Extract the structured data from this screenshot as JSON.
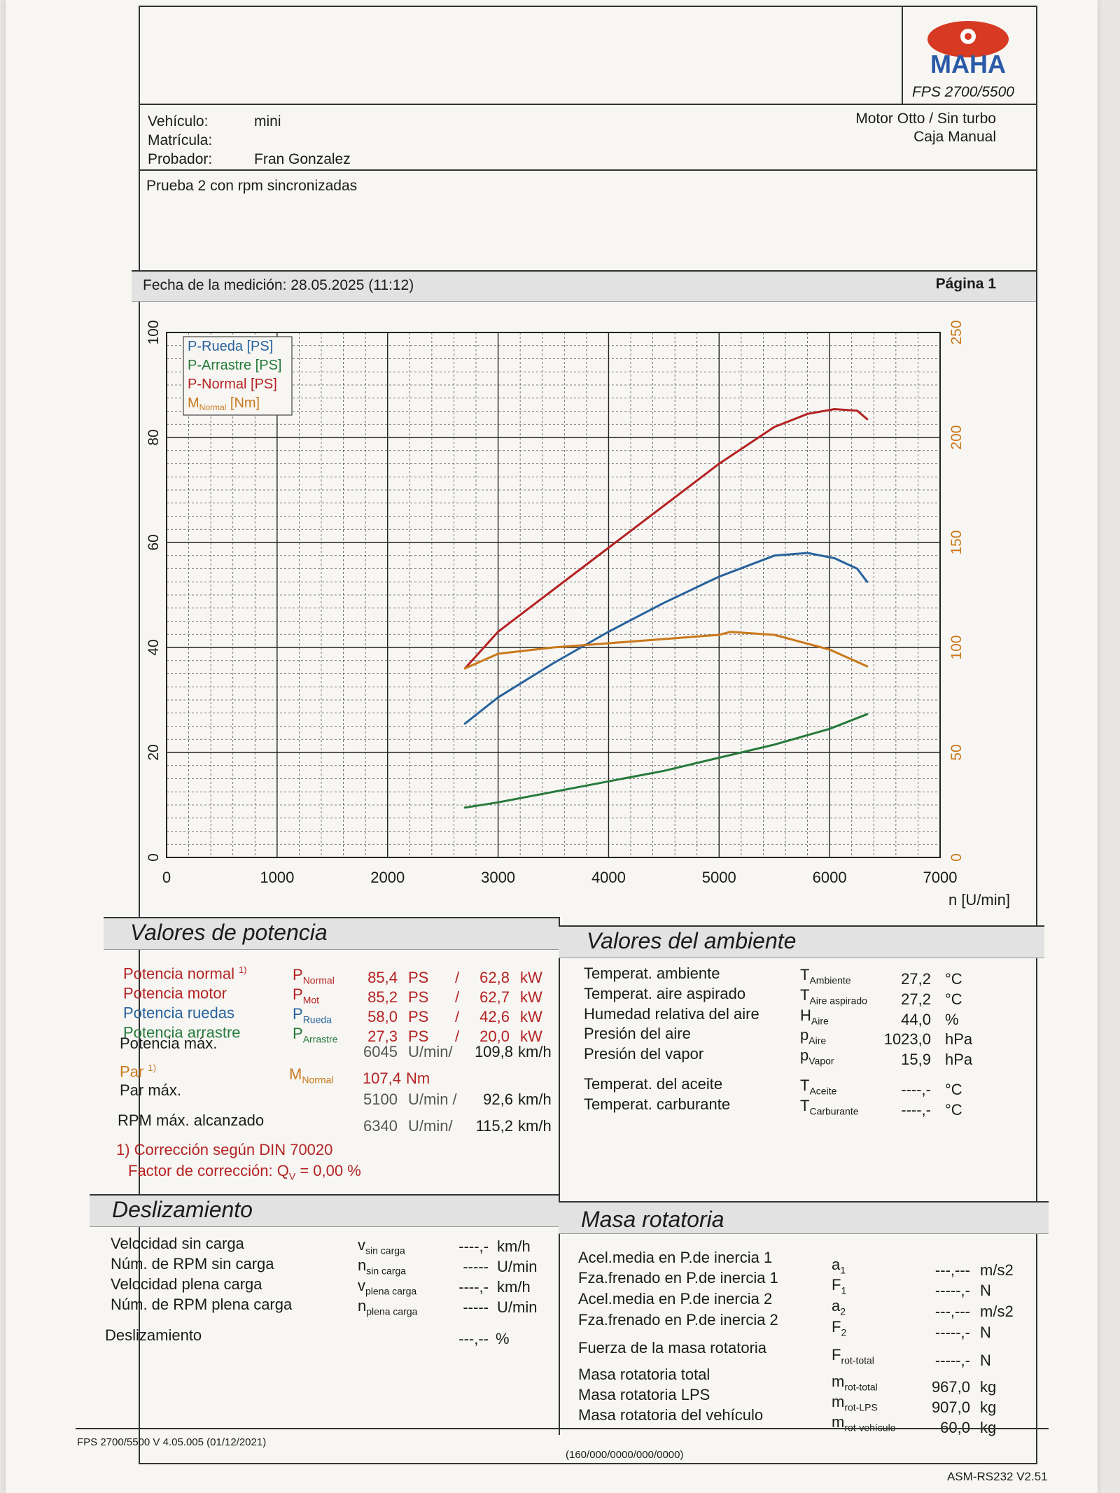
{
  "header": {
    "brand": "MAHA",
    "model": "FPS 2700/5500"
  },
  "vehicle": {
    "vehiculo_label": "Vehículo:",
    "vehiculo_value": "mini",
    "matricula_label": "Matrícula:",
    "matricula_value": "",
    "probador_label": "Probador:",
    "probador_value": "Fran Gonzalez",
    "engine_type": "Motor Otto / Sin turbo",
    "gearbox": "Caja Manual"
  },
  "comment": "Prueba 2 con rpm sincronizadas",
  "measurement": {
    "date_text": "Fecha de la medición: 28.05.2025 (11:12)",
    "page_text": "Página 1"
  },
  "chart_data": {
    "type": "line",
    "title": "",
    "xlabel": "n [U/min]",
    "xlim": [
      0,
      7000
    ],
    "x_ticks": [
      "0",
      "1000",
      "2000",
      "3000",
      "4000",
      "5000",
      "6000",
      "7000"
    ],
    "ylim_left": [
      0,
      100
    ],
    "y_ticks_left": [
      "0",
      "20",
      "40",
      "60",
      "80",
      "100"
    ],
    "ylim_right": [
      0,
      250
    ],
    "y_ticks_right": [
      "0",
      "50",
      "100",
      "150",
      "200",
      "250"
    ],
    "grid": true,
    "legend_position": "top-left",
    "legend": [
      {
        "text": "P-Rueda [PS]",
        "color": "#27629c"
      },
      {
        "text": "P-Arrastre [PS]",
        "color": "#267a3a"
      },
      {
        "text": "P-Normal [PS]",
        "color": "#b42323"
      },
      {
        "text": "M",
        "sub": "Normal",
        "suffix": " [Nm]",
        "color": "#c9781a"
      }
    ],
    "series": [
      {
        "name": "P-Normal [PS]",
        "color": "#b42323",
        "axis": "left",
        "x": [
          2700,
          3000,
          3500,
          4000,
          4500,
          5000,
          5500,
          5800,
          6045,
          6250,
          6340
        ],
        "y": [
          36,
          43,
          51,
          59,
          67,
          75,
          82,
          84.5,
          85.4,
          85.1,
          83.5
        ]
      },
      {
        "name": "P-Rueda [PS]",
        "color": "#27629c",
        "axis": "left",
        "x": [
          2700,
          3000,
          3500,
          4000,
          4500,
          5000,
          5500,
          5800,
          6045,
          6250,
          6340
        ],
        "y": [
          25.5,
          30.5,
          37,
          43,
          48.5,
          53.5,
          57.5,
          58,
          57,
          55,
          52.5
        ]
      },
      {
        "name": "P-Arrastre [PS]",
        "color": "#267a3a",
        "axis": "left",
        "x": [
          2700,
          3000,
          3500,
          4000,
          4500,
          5000,
          5500,
          6000,
          6340
        ],
        "y": [
          9.5,
          10.5,
          12.5,
          14.5,
          16.5,
          19,
          21.5,
          24.5,
          27.3
        ]
      },
      {
        "name": "M Normal [Nm]",
        "color": "#c9781a",
        "axis": "right",
        "x": [
          2700,
          3000,
          3500,
          4000,
          4500,
          5000,
          5100,
          5500,
          6000,
          6340
        ],
        "y": [
          90,
          97,
          100,
          102,
          104,
          106,
          107.4,
          106,
          99,
          91
        ]
      }
    ]
  },
  "potencia": {
    "title": "Valores de potencia",
    "rows": [
      {
        "label": "Potencia normal",
        "note": "1)",
        "sym": "P",
        "sub": "Normal",
        "ps": "85,4",
        "ps_unit": "PS",
        "sep": "/",
        "kw": "62,8",
        "kw_unit": "kW",
        "color": "#b42323"
      },
      {
        "label": "Potencia motor",
        "note": "",
        "sym": "P",
        "sub": "Mot",
        "ps": "85,2",
        "ps_unit": "PS",
        "sep": "/",
        "kw": "62,7",
        "kw_unit": "kW",
        "color": "#b42323"
      },
      {
        "label": "Potencia ruedas",
        "note": "",
        "sym": "P",
        "sub": "Rueda",
        "ps": "58,0",
        "ps_unit": "PS",
        "sep": "/",
        "kw": "42,6",
        "kw_unit": "kW",
        "color": "#27629c"
      },
      {
        "label": "Potencia arrastre",
        "note": "",
        "sym": "P",
        "sub": "Arrastre",
        "ps": "27,3",
        "ps_unit": "PS",
        "sep": "/",
        "kw": "20,0",
        "kw_unit": "kW",
        "color": "#267a3a"
      }
    ],
    "pmax_label": "Potencia máx.",
    "pmax_rpm": "6045",
    "pmax_rpm_unit": "U/min/",
    "pmax_speed": "109,8",
    "pmax_speed_unit": "km/h",
    "par_label": "Par",
    "par_note": "1)",
    "par_sym": "M",
    "par_sub": "Normal",
    "par_value": "107,4",
    "par_unit": "Nm",
    "parmax_label": "Par máx.",
    "parmax_rpm": "5100",
    "parmax_rpm_unit": "U/min /",
    "parmax_speed": "92,6",
    "parmax_speed_unit": "km/h",
    "rpmmax_label": "RPM máx. alcanzado",
    "rpmmax_rpm": "6340",
    "rpmmax_rpm_unit": "U/min/",
    "rpmmax_speed": "115,2",
    "rpmmax_speed_unit": "km/h",
    "correction_note": "1) Corrección según DIN 70020",
    "correction_factor_label": "Factor de corrección: Q",
    "correction_factor_sub": "V",
    "correction_factor_value": "=   0,00 %"
  },
  "ambiente": {
    "title": "Valores del ambiente",
    "rows": [
      {
        "label": "Temperat. ambiente",
        "sym": "T",
        "sub": "Ambiente",
        "value": "27,2",
        "unit": "°C"
      },
      {
        "label": "Temperat. aire aspirado",
        "sym": "T",
        "sub": "Aire aspirado",
        "value": "27,2",
        "unit": "°C"
      },
      {
        "label": "Humedad relativa del aire",
        "sym": "H",
        "sub": "Aire",
        "value": "44,0",
        "unit": "%"
      },
      {
        "label": "Presión del aire",
        "sym": "p",
        "sub": "Aire",
        "value": "1023,0",
        "unit": "hPa"
      },
      {
        "label": "Presión del vapor",
        "sym": "p",
        "sub": "Vapor",
        "value": "15,9",
        "unit": "hPa"
      },
      {
        "label": "Temperat. del aceite",
        "sym": "T",
        "sub": "Aceite",
        "value": "----,-",
        "unit": "°C"
      },
      {
        "label": "Temperat. carburante",
        "sym": "T",
        "sub": "Carburante",
        "value": "----,-",
        "unit": "°C"
      }
    ]
  },
  "deslizamiento": {
    "title": "Deslizamiento",
    "rows": [
      {
        "label": "Velocidad sin carga",
        "sym": "v",
        "sub": "sin carga",
        "value": "----,-",
        "unit": "km/h"
      },
      {
        "label": "Núm. de RPM sin carga",
        "sym": "n",
        "sub": "sin carga",
        "value": "-----",
        "unit": "U/min"
      },
      {
        "label": "Velocidad plena carga",
        "sym": "v",
        "sub": "plena carga",
        "value": "----,-",
        "unit": "km/h"
      },
      {
        "label": "Núm. de RPM plena carga",
        "sym": "n",
        "sub": "plena carga",
        "value": "-----",
        "unit": "U/min"
      }
    ],
    "slip_label": "Deslizamiento",
    "slip_value": "---,--",
    "slip_unit": "%"
  },
  "masa": {
    "title": "Masa rotatoria",
    "rows": [
      {
        "label": "Acel.media en P.de inercia 1",
        "sym": "a",
        "sub": "1",
        "value": "---,---",
        "unit": "m/s2"
      },
      {
        "label": "Fza.frenado en P.de inercia 1",
        "sym": "F",
        "sub": "1",
        "value": "-----,-",
        "unit": "N"
      },
      {
        "label": "Acel.media en P.de inercia 2",
        "sym": "a",
        "sub": "2",
        "value": "---,---",
        "unit": "m/s2"
      },
      {
        "label": "Fza.frenado en P.de inercia 2",
        "sym": "F",
        "sub": "2",
        "value": "-----,-",
        "unit": "N"
      },
      {
        "label": "Fuerza de la masa rotatoria",
        "sym": "F",
        "sub": "rot-total",
        "value": "-----,-",
        "unit": "N"
      },
      {
        "label": "Masa rotatoria total",
        "sym": "m",
        "sub": "rot-total",
        "value": "967,0",
        "unit": "kg"
      },
      {
        "label": "Masa rotatoria LPS",
        "sym": "m",
        "sub": "rot-LPS",
        "value": "907,0",
        "unit": "kg"
      },
      {
        "label": "Masa rotatoria del vehículo",
        "sym": "m",
        "sub": "rot-vehículo",
        "value": "60,0",
        "unit": "kg"
      }
    ]
  },
  "footer": {
    "left": "FPS 2700/5500 V 4.05.005 (01/12/2021)",
    "center": "(160/000/0000/000/0000)",
    "right": "ASM-RS232 V2.51"
  }
}
